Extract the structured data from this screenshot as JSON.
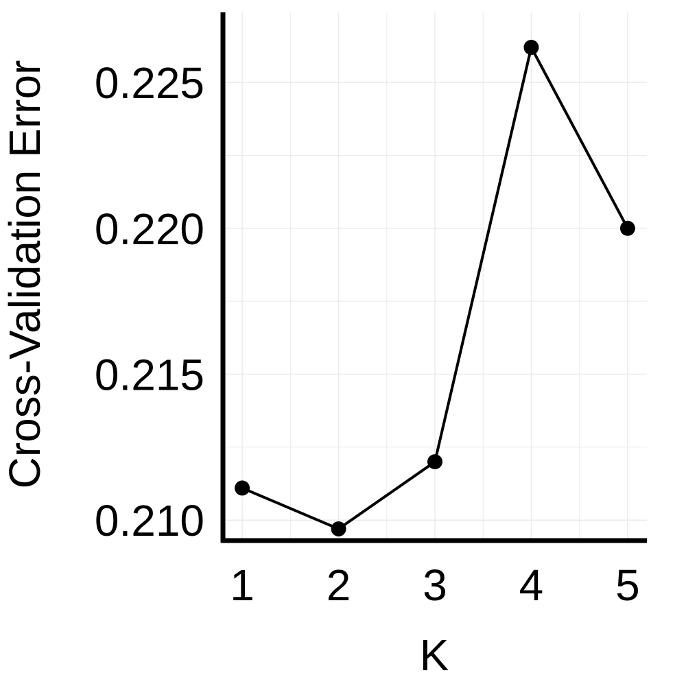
{
  "chart_data": {
    "type": "line",
    "title": "",
    "xlabel": "K",
    "ylabel": "Cross-Validation Error",
    "x": [
      1,
      2,
      3,
      4,
      5
    ],
    "series": [
      {
        "values": [
          0.2111,
          0.2097,
          0.212,
          0.2262,
          0.22
        ]
      }
    ],
    "xlim": [
      0.8,
      5.2
    ],
    "ylim": [
      0.2093,
      0.2274
    ],
    "x_ticks": [
      1,
      2,
      3,
      4,
      5
    ],
    "x_tick_labels": [
      "1",
      "2",
      "3",
      "4",
      "5"
    ],
    "y_ticks": [
      0.21,
      0.215,
      0.22,
      0.225
    ],
    "y_tick_labels": [
      "0.210",
      "0.215",
      "0.220",
      "0.225"
    ],
    "y_minor_ticks": [
      0.2125,
      0.2175,
      0.2225
    ],
    "grid": true,
    "legend": "none",
    "colors": {
      "line": "#000000",
      "points": "#000000",
      "grid": "#ebebeb",
      "axis": "#000000"
    }
  }
}
